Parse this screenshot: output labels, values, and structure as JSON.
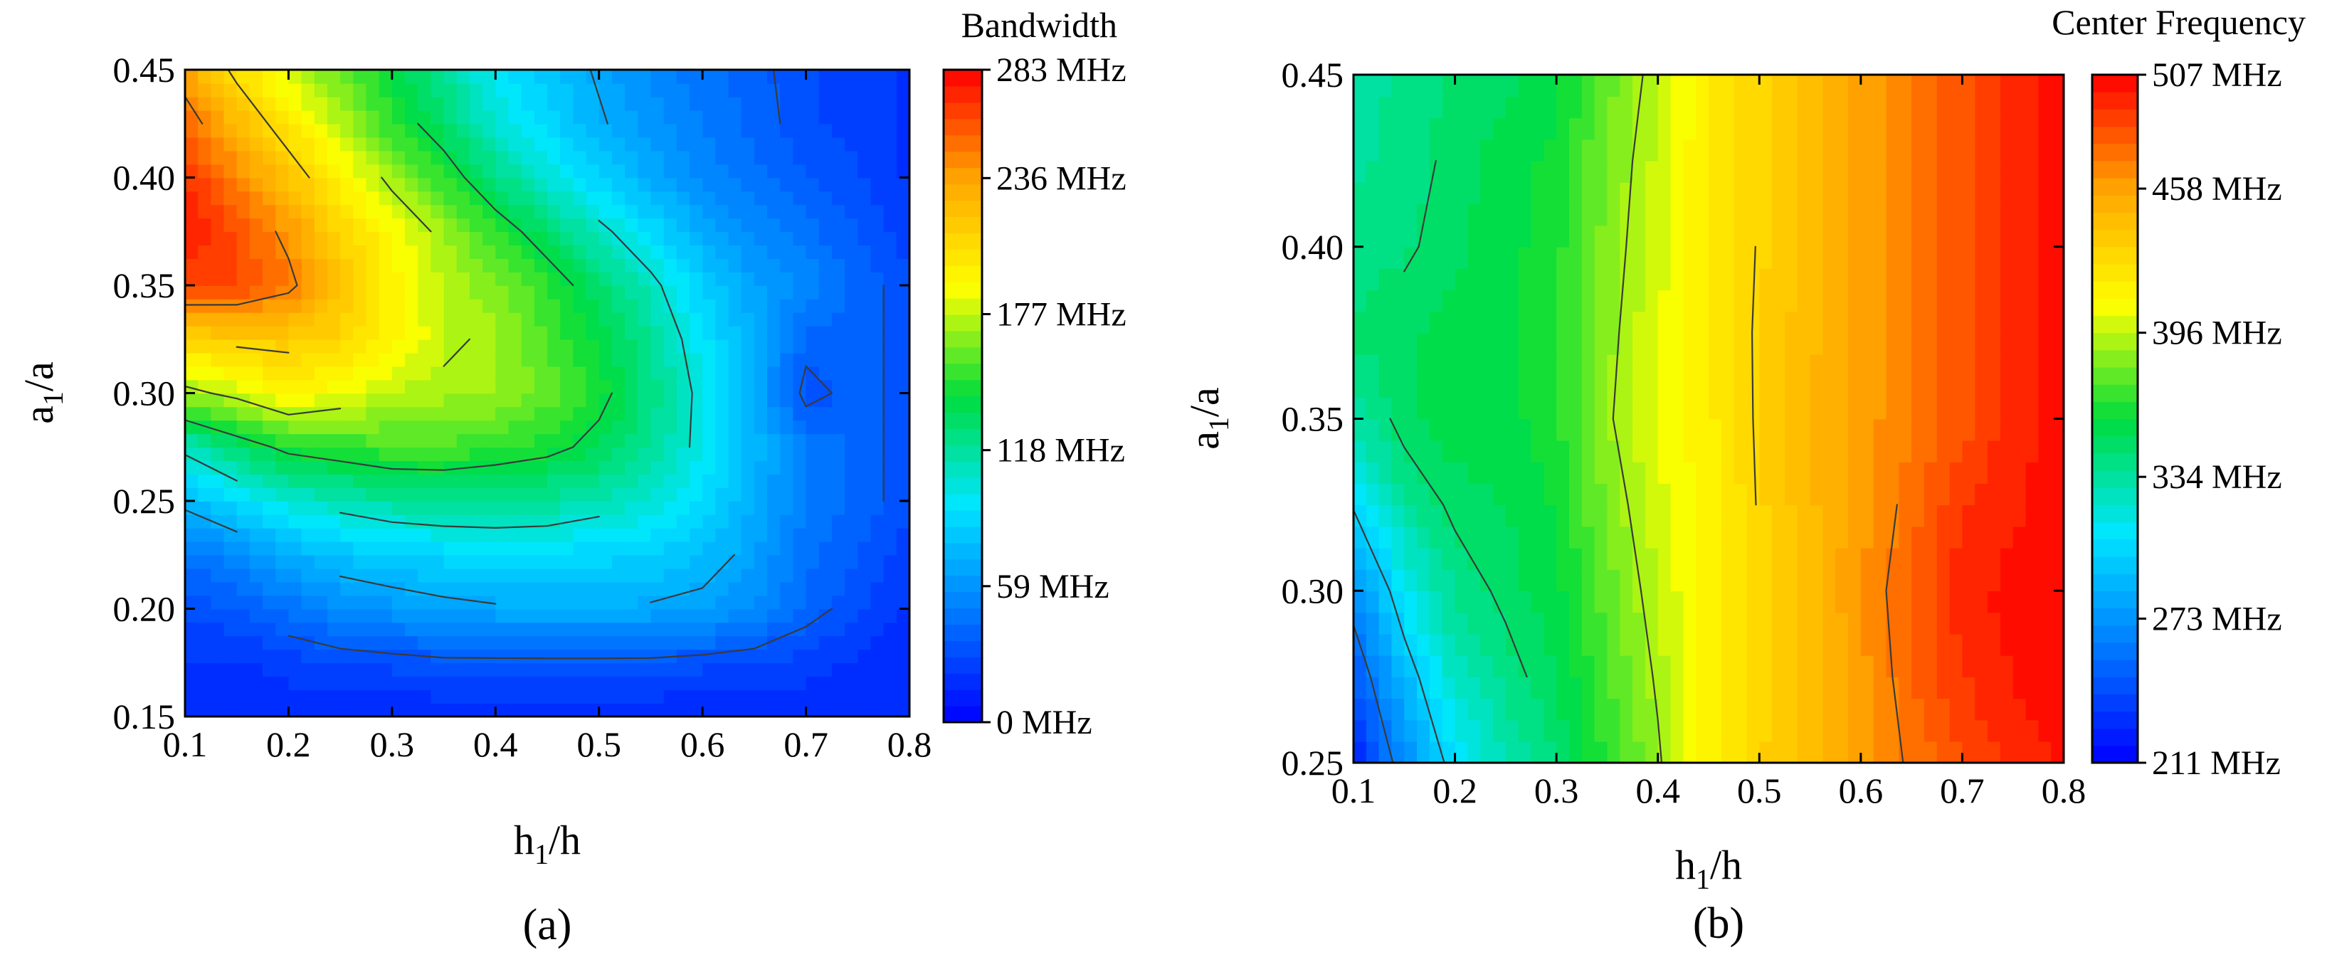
{
  "colors": {
    "colormap": [
      "#0000ff",
      "#0078ff",
      "#00e6ff",
      "#00dc3c",
      "#ffff00",
      "#ffa500",
      "#ff0000"
    ],
    "contour_line": "#3a3a3a",
    "frame": "#000000"
  },
  "chart_data": [
    {
      "type": "heatmap",
      "panel_label": "(a)",
      "title": "Bandwidth",
      "xlabel": {
        "main": "h",
        "sub": "1",
        "tail": "/h"
      },
      "ylabel": {
        "main": "a",
        "sub": "1",
        "tail": "/a"
      },
      "xlim": [
        0.1,
        0.8
      ],
      "ylim": [
        0.15,
        0.45
      ],
      "xticks": [
        "0.1",
        "0.2",
        "0.3",
        "0.4",
        "0.5",
        "0.6",
        "0.7",
        "0.8"
      ],
      "yticks": [
        "0.15",
        "0.20",
        "0.25",
        "0.30",
        "0.35",
        "0.40",
        "0.45"
      ],
      "colorbar_range": [
        0,
        283
      ],
      "colorbar_ticks": [
        {
          "value": 0,
          "label": "0 MHz"
        },
        {
          "value": 59,
          "label": "59 MHz"
        },
        {
          "value": 118,
          "label": "118 MHz"
        },
        {
          "value": 177,
          "label": "177 MHz"
        },
        {
          "value": 236,
          "label": "236 MHz"
        },
        {
          "value": 283,
          "label": "283 MHz"
        }
      ],
      "contour_levels": [
        35,
        70,
        105,
        140,
        175,
        210,
        245
      ],
      "x": [
        0.1,
        0.15,
        0.2,
        0.25,
        0.3,
        0.35,
        0.4,
        0.45,
        0.5,
        0.55,
        0.6,
        0.65,
        0.7,
        0.75,
        0.8
      ],
      "y": [
        0.15,
        0.175,
        0.2,
        0.225,
        0.25,
        0.275,
        0.3,
        0.325,
        0.35,
        0.375,
        0.4,
        0.425,
        0.45
      ],
      "z": [
        [
          15,
          15,
          15,
          15,
          15,
          15,
          15,
          15,
          15,
          15,
          15,
          15,
          15,
          15,
          15
        ],
        [
          20,
          20,
          25,
          28,
          30,
          32,
          32,
          32,
          32,
          32,
          30,
          28,
          25,
          20,
          15
        ],
        [
          30,
          35,
          45,
          55,
          60,
          65,
          68,
          70,
          70,
          68,
          65,
          55,
          40,
          30,
          20
        ],
        [
          45,
          55,
          70,
          80,
          85,
          88,
          90,
          90,
          88,
          85,
          78,
          65,
          45,
          35,
          25
        ],
        [
          75,
          90,
          105,
          112,
          118,
          120,
          120,
          118,
          112,
          105,
          90,
          70,
          50,
          40,
          30
        ],
        [
          110,
          130,
          145,
          150,
          155,
          155,
          150,
          145,
          135,
          120,
          100,
          75,
          50,
          40,
          30
        ],
        [
          170,
          180,
          195,
          185,
          175,
          172,
          170,
          160,
          145,
          125,
          100,
          70,
          30,
          40,
          30
        ],
        [
          210,
          215,
          215,
          210,
          195,
          178,
          172,
          155,
          140,
          120,
          95,
          70,
          40,
          40,
          30
        ],
        [
          265,
          262,
          250,
          220,
          195,
          175,
          165,
          150,
          130,
          110,
          85,
          65,
          55,
          40,
          30
        ],
        [
          278,
          260,
          240,
          210,
          190,
          170,
          150,
          130,
          110,
          90,
          70,
          55,
          45,
          35,
          25
        ],
        [
          270,
          245,
          220,
          195,
          170,
          150,
          125,
          105,
          85,
          70,
          55,
          45,
          35,
          30,
          20
        ],
        [
          255,
          225,
          200,
          175,
          150,
          130,
          105,
          88,
          72,
          60,
          50,
          40,
          30,
          25,
          20
        ],
        [
          235,
          205,
          180,
          160,
          140,
          120,
          95,
          80,
          68,
          55,
          45,
          38,
          30,
          25,
          20
        ]
      ]
    },
    {
      "type": "heatmap",
      "panel_label": "(b)",
      "title": "Center Frequency",
      "xlabel": {
        "main": "h",
        "sub": "1",
        "tail": "/h"
      },
      "ylabel": {
        "main": "a",
        "sub": "1",
        "tail": "/a"
      },
      "xlim": [
        0.1,
        0.8
      ],
      "ylim": [
        0.25,
        0.45
      ],
      "xticks": [
        "0.1",
        "0.2",
        "0.3",
        "0.4",
        "0.5",
        "0.6",
        "0.7",
        "0.8"
      ],
      "yticks": [
        "0.25",
        "0.30",
        "0.35",
        "0.40",
        "0.45"
      ],
      "colorbar_range": [
        211,
        507
      ],
      "colorbar_ticks": [
        {
          "value": 211,
          "label": "211 MHz"
        },
        {
          "value": 273,
          "label": "273 MHz"
        },
        {
          "value": 334,
          "label": "334 MHz"
        },
        {
          "value": 396,
          "label": "396 MHz"
        },
        {
          "value": 458,
          "label": "458 MHz"
        },
        {
          "value": 507,
          "label": "507 MHz"
        }
      ],
      "contour_levels": [
        260,
        300,
        345,
        390,
        430,
        470
      ],
      "x": [
        0.1,
        0.15,
        0.2,
        0.25,
        0.3,
        0.35,
        0.4,
        0.45,
        0.5,
        0.55,
        0.6,
        0.65,
        0.7,
        0.75,
        0.8
      ],
      "y": [
        0.25,
        0.275,
        0.3,
        0.325,
        0.35,
        0.375,
        0.4,
        0.425,
        0.45
      ],
      "z": [
        [
          225,
          270,
          308,
          328,
          345,
          368,
          388,
          415,
          432,
          445,
          460,
          472,
          484,
          494,
          502
        ],
        [
          245,
          290,
          325,
          340,
          352,
          372,
          392,
          415,
          430,
          443,
          460,
          476,
          492,
          500,
          505
        ],
        [
          270,
          312,
          338,
          348,
          357,
          378,
          396,
          416,
          430,
          445,
          462,
          478,
          497,
          502,
          506
        ],
        [
          302,
          335,
          348,
          352,
          360,
          383,
          400,
          416,
          431,
          446,
          460,
          474,
          492,
          498,
          505
        ],
        [
          332,
          350,
          356,
          356,
          365,
          388,
          405,
          416,
          432,
          448,
          458,
          470,
          482,
          495,
          505
        ],
        [
          345,
          350,
          356,
          356,
          365,
          386,
          403,
          418,
          432,
          446,
          458,
          470,
          482,
          494,
          504
        ],
        [
          340,
          343,
          350,
          356,
          364,
          384,
          400,
          418,
          431,
          444,
          457,
          470,
          482,
          494,
          503
        ],
        [
          335,
          340,
          348,
          355,
          362,
          382,
          398,
          419,
          430,
          443,
          457,
          470,
          482,
          494,
          503
        ],
        [
          330,
          340,
          345,
          350,
          356,
          378,
          395,
          419,
          430,
          443,
          457,
          470,
          482,
          494,
          503
        ]
      ]
    }
  ]
}
